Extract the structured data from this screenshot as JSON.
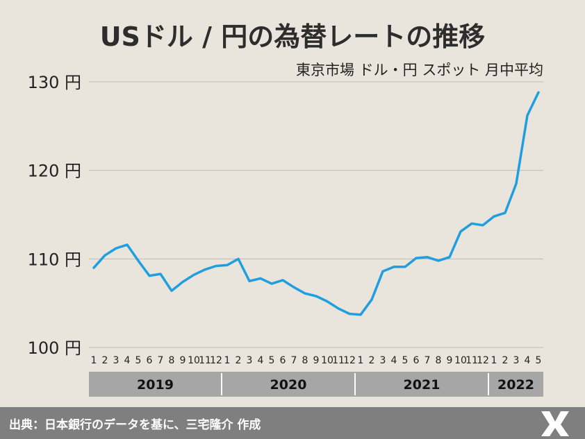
{
  "chart_data": {
    "type": "line",
    "title": "USドル / 円の為替レートの推移",
    "subtitle": "東京市場 ドル・円 スポット 月中平均",
    "y_ticks": [
      "100 円",
      "110 円",
      "120 円",
      "130 円"
    ],
    "ylim": [
      100,
      130
    ],
    "grid": true,
    "series_color": "#1f9ee0",
    "x_month_labels": [
      "1",
      "2",
      "3",
      "4",
      "5",
      "6",
      "7",
      "8",
      "9",
      "10",
      "11",
      "12",
      "1",
      "2",
      "3",
      "4",
      "5",
      "6",
      "7",
      "8",
      "9",
      "10",
      "11",
      "12",
      "1",
      "2",
      "3",
      "4",
      "5",
      "6",
      "7",
      "8",
      "9",
      "10",
      "11",
      "12",
      "1",
      "2",
      "3",
      "4",
      "5"
    ],
    "years": [
      {
        "label": "2019",
        "months": 12
      },
      {
        "label": "2020",
        "months": 12
      },
      {
        "label": "2021",
        "months": 12
      },
      {
        "label": "2022",
        "months": 5
      }
    ],
    "values": [
      109.0,
      110.4,
      111.2,
      111.6,
      109.8,
      108.1,
      108.3,
      106.4,
      107.4,
      108.2,
      108.8,
      109.2,
      109.3,
      110.0,
      107.5,
      107.8,
      107.2,
      107.6,
      106.8,
      106.1,
      105.8,
      105.2,
      104.4,
      103.8,
      103.7,
      105.4,
      108.6,
      109.1,
      109.1,
      110.1,
      110.2,
      109.8,
      110.2,
      113.1,
      114.0,
      113.8,
      114.8,
      115.2,
      118.5,
      126.2,
      128.8
    ]
  },
  "footer": {
    "source": "出典：日本銀行のデータを基に、三宅隆介 作成"
  },
  "icons": {
    "logo": "mr-logo-icon"
  }
}
